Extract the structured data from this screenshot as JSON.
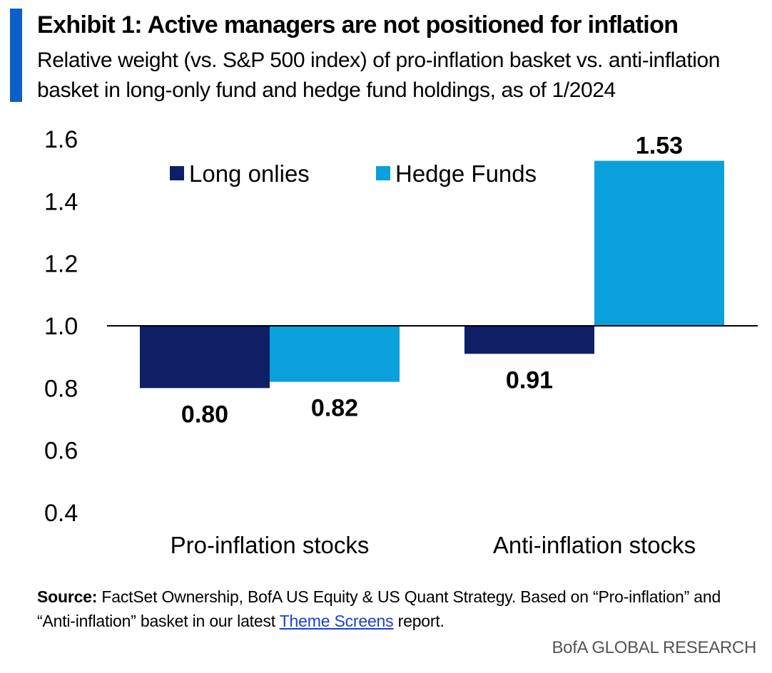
{
  "header": {
    "title": "Exhibit 1: Active managers are not positioned for inflation",
    "subtitle": "Relative weight (vs. S&P 500 index) of pro-inflation basket vs. anti-inflation basket in long-only fund and hedge fund holdings, as of 1/2024"
  },
  "footer": {
    "source_label": "Source:",
    "source_text_1": " FactSet Ownership, BofA US Equity & US Quant Strategy. Based on “Pro-inflation” and “Anti-inflation” basket in our latest ",
    "source_link": "Theme Screens",
    "source_text_2": " report.",
    "brand": "BofA GLOBAL RESEARCH"
  },
  "colors": {
    "accent": "#0b5fc9",
    "long_onlies": "#0f1f66",
    "hedge_funds": "#0aa0dc"
  },
  "chart_data": {
    "type": "bar",
    "baseline": 1.0,
    "ylim": [
      0.4,
      1.6
    ],
    "yticks": [
      0.4,
      0.6,
      0.8,
      1.0,
      1.2,
      1.4,
      1.6
    ],
    "ytick_labels": [
      "0.4",
      "0.6",
      "0.8",
      "1.0",
      "1.2",
      "1.4",
      "1.6"
    ],
    "categories": [
      "Pro-inflation stocks",
      "Anti-inflation stocks"
    ],
    "legend_position": "top-left",
    "grid": false,
    "series": [
      {
        "name": "Long onlies",
        "color": "#0f1f66",
        "values": [
          0.8,
          0.91
        ],
        "labels": [
          "0.80",
          "0.91"
        ]
      },
      {
        "name": "Hedge Funds",
        "color": "#0aa0dc",
        "values": [
          0.82,
          1.53
        ],
        "labels": [
          "0.82",
          "1.53"
        ]
      }
    ]
  }
}
